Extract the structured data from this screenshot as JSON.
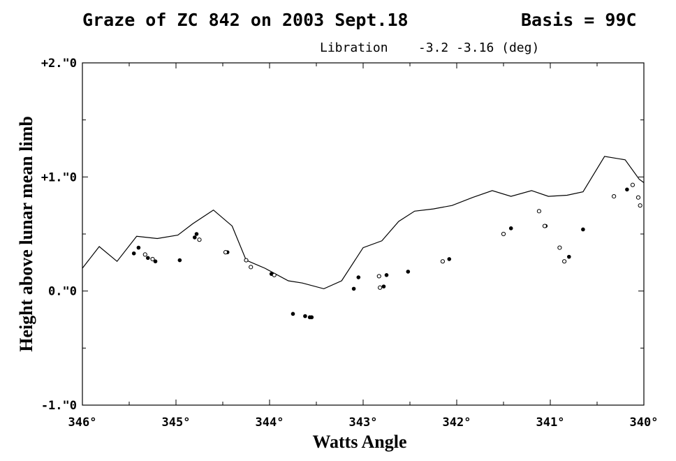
{
  "header": {
    "title": "Graze of ZC 842 on 2003 Sept.18",
    "basis": "Basis = 99C",
    "libration_label": "Libration",
    "libration_values": "-3.2 -3.16 (deg)"
  },
  "chart_data": {
    "type": "scatter",
    "title": "Graze of ZC 842 on 2003 Sept.18",
    "xlabel": "Watts Angle",
    "ylabel": "Height above lunar mean limb",
    "xlim": [
      346,
      340
    ],
    "ylim": [
      -1.0,
      2.0
    ],
    "x_ticks": [
      {
        "value": 346,
        "label": "346°"
      },
      {
        "value": 345,
        "label": "345°"
      },
      {
        "value": 344,
        "label": "344°"
      },
      {
        "value": 343,
        "label": "343°"
      },
      {
        "value": 342,
        "label": "342°"
      },
      {
        "value": 341,
        "label": "341°"
      },
      {
        "value": 340,
        "label": "340°"
      }
    ],
    "y_ticks": [
      {
        "value": 2.0,
        "label": "+2.\"0"
      },
      {
        "value": 1.0,
        "label": "+1.\"0"
      },
      {
        "value": 0.0,
        "label": "0.\"0"
      },
      {
        "value": -1.0,
        "label": "-1.\"0"
      }
    ],
    "grid": false,
    "series": [
      {
        "kind": "line",
        "points": [
          [
            346.0,
            0.2
          ],
          [
            345.82,
            0.39
          ],
          [
            345.63,
            0.26
          ],
          [
            345.42,
            0.48
          ],
          [
            345.2,
            0.46
          ],
          [
            344.98,
            0.49
          ],
          [
            344.82,
            0.59
          ],
          [
            344.6,
            0.71
          ],
          [
            344.4,
            0.57
          ],
          [
            344.25,
            0.27
          ],
          [
            344.05,
            0.2
          ],
          [
            343.8,
            0.09
          ],
          [
            343.65,
            0.07
          ],
          [
            343.42,
            0.02
          ],
          [
            343.23,
            0.09
          ],
          [
            343.0,
            0.38
          ],
          [
            342.8,
            0.44
          ],
          [
            342.62,
            0.61
          ],
          [
            342.45,
            0.7
          ],
          [
            342.25,
            0.72
          ],
          [
            342.05,
            0.75
          ],
          [
            341.83,
            0.82
          ],
          [
            341.62,
            0.88
          ],
          [
            341.42,
            0.83
          ],
          [
            341.2,
            0.88
          ],
          [
            341.02,
            0.83
          ],
          [
            340.82,
            0.84
          ],
          [
            340.65,
            0.87
          ],
          [
            340.42,
            1.18
          ],
          [
            340.2,
            1.15
          ],
          [
            340.05,
            0.98
          ],
          [
            340.0,
            0.95
          ]
        ]
      },
      {
        "kind": "filled",
        "points": [
          [
            345.45,
            0.33
          ],
          [
            345.4,
            0.38
          ],
          [
            345.3,
            0.29
          ],
          [
            345.22,
            0.26
          ],
          [
            344.96,
            0.27
          ],
          [
            344.8,
            0.47
          ],
          [
            344.78,
            0.5
          ],
          [
            344.45,
            0.34
          ],
          [
            343.98,
            0.15
          ],
          [
            343.75,
            -0.2
          ],
          [
            343.62,
            -0.22
          ],
          [
            343.57,
            -0.23
          ],
          [
            343.55,
            -0.23
          ],
          [
            343.1,
            0.02
          ],
          [
            343.05,
            0.12
          ],
          [
            342.78,
            0.04
          ],
          [
            342.75,
            0.14
          ],
          [
            342.52,
            0.17
          ],
          [
            342.08,
            0.28
          ],
          [
            341.42,
            0.55
          ],
          [
            341.05,
            0.57
          ],
          [
            340.8,
            0.3
          ],
          [
            340.65,
            0.54
          ],
          [
            340.18,
            0.89
          ]
        ]
      },
      {
        "kind": "open",
        "points": [
          [
            345.33,
            0.32
          ],
          [
            345.25,
            0.28
          ],
          [
            344.75,
            0.45
          ],
          [
            344.47,
            0.34
          ],
          [
            344.25,
            0.27
          ],
          [
            344.2,
            0.21
          ],
          [
            343.95,
            0.14
          ],
          [
            342.83,
            0.13
          ],
          [
            342.82,
            0.03
          ],
          [
            342.15,
            0.26
          ],
          [
            341.5,
            0.5
          ],
          [
            341.12,
            0.7
          ],
          [
            341.06,
            0.57
          ],
          [
            340.9,
            0.38
          ],
          [
            340.85,
            0.26
          ],
          [
            340.32,
            0.83
          ],
          [
            340.12,
            0.93
          ],
          [
            340.06,
            0.82
          ],
          [
            340.04,
            0.75
          ]
        ]
      }
    ]
  }
}
